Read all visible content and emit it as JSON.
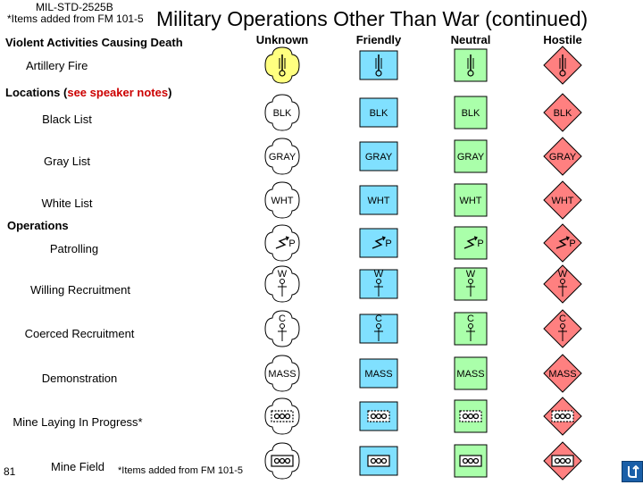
{
  "header": {
    "doc_id": "MIL-STD-2525B",
    "note": "*Items added from FM 101-5",
    "title": "Military Operations Other Than War (continued)"
  },
  "columns": {
    "first": "Violent Activities Causing Death",
    "unknown": "Unknown",
    "friendly": "Friendly",
    "neutral": "Neutral",
    "hostile": "Hostile"
  },
  "colors": {
    "unknown": "#ffff80",
    "friendly": "#80e0ff",
    "neutral": "#aaffaa",
    "hostile": "#ff8080",
    "accent_red": "#cc0000"
  },
  "sections": {
    "locations_prefix": "Locations (",
    "locations_link": "see speaker notes",
    "locations_suffix": ")",
    "operations": "Operations"
  },
  "rows": {
    "artillery_fire": "Artillery Fire",
    "black_list": "Black List",
    "gray_list": "Gray List",
    "white_list": "White List",
    "patrolling": "Patrolling",
    "willing_recruitment": "Willing Recruitment",
    "coerced_recruitment": "Coerced Recruitment",
    "demonstration": "Demonstration",
    "mine_laying": "Mine Laying In Progress*",
    "mine_field": "Mine Field"
  },
  "symbol_text": {
    "blk": "BLK",
    "gray": "GRAY",
    "wht": "WHT",
    "p": "P",
    "w": "W",
    "c": "C",
    "mass": "MASS"
  },
  "footer": {
    "page_number": "81",
    "note": "*Items added from FM 101-5",
    "return_icon": "return-arrow-icon"
  }
}
